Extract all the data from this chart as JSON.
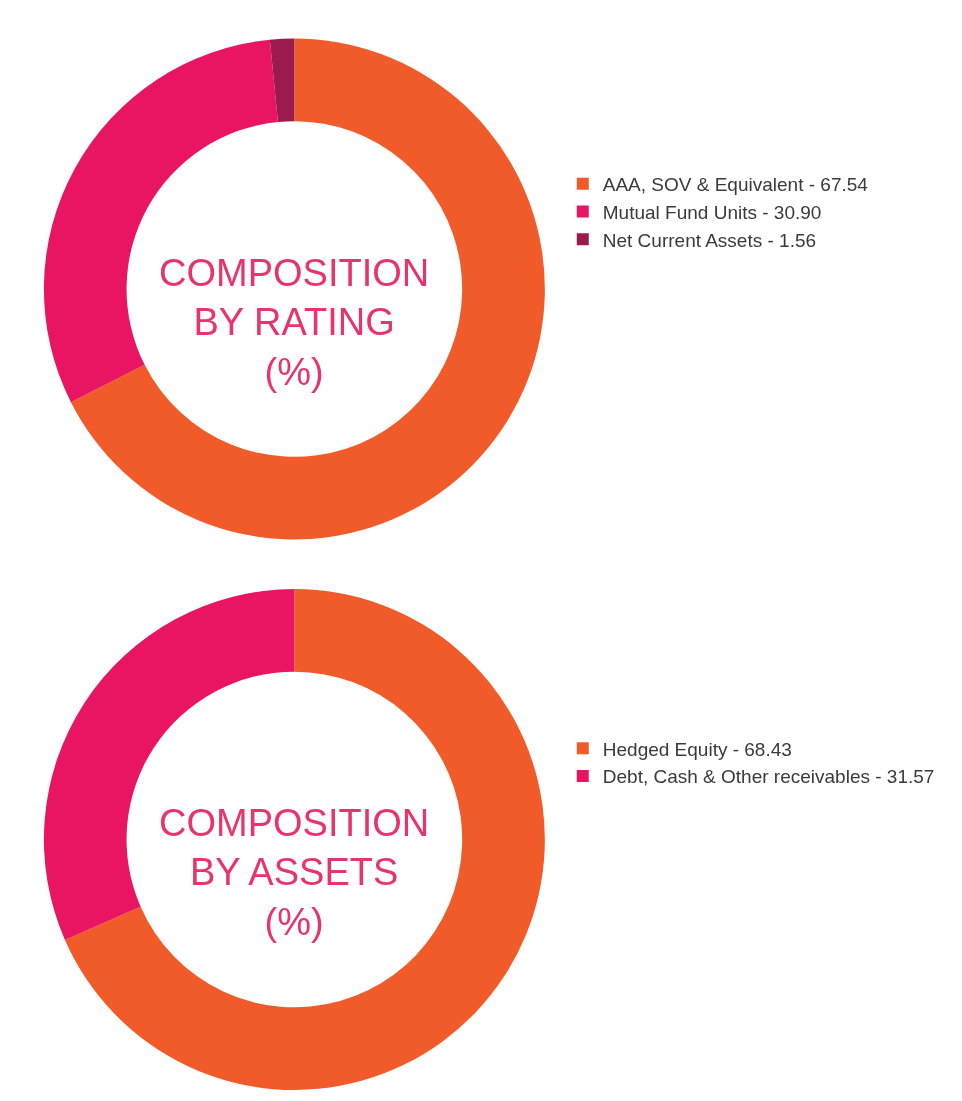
{
  "chart_data": [
    {
      "type": "donut",
      "title": "COMPOSITION BY RATING (%)",
      "categories": [
        "AAA, SOV & Equivalent",
        "Mutual Fund Units",
        "Net Current Assets"
      ],
      "values": [
        67.54,
        30.9,
        1.56
      ],
      "value_labels": [
        "67.54",
        "30.90",
        "1.56"
      ],
      "colors": [
        "#f15a29",
        "#e91562",
        "#9b1b4f"
      ],
      "legend": "right"
    },
    {
      "type": "donut",
      "title": "COMPOSITION BY ASSETS (%)",
      "categories": [
        "Hedged Equity",
        "Debt, Cash & Other receivables"
      ],
      "values": [
        68.43,
        31.57
      ],
      "value_labels": [
        "68.43",
        "31.57"
      ],
      "colors": [
        "#f15a29",
        "#e91562"
      ],
      "legend": "right"
    }
  ]
}
